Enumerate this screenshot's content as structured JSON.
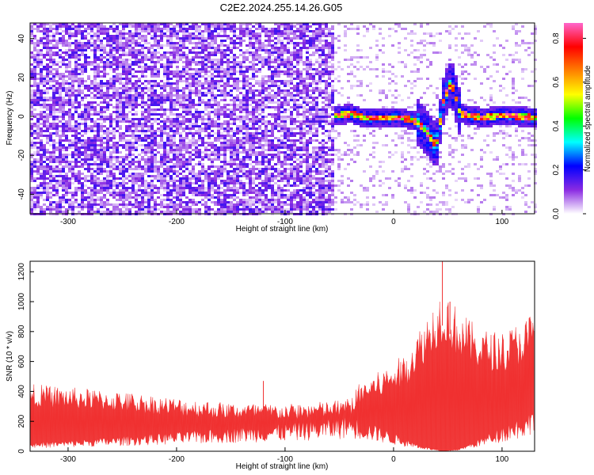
{
  "chart_data": [
    {
      "type": "heatmap",
      "title": "C2E2.2024.255.14.26.G05",
      "xlabel": "Height of straight line (km)",
      "ylabel": "Frequency (Hz)",
      "xlim": [
        -335,
        130
      ],
      "ylim": [
        -50,
        48
      ],
      "xticks": [
        -300,
        -200,
        -100,
        0,
        100
      ],
      "yticks": [
        -40,
        -20,
        0,
        20,
        40
      ],
      "xtick_labels": [
        "-300",
        "-200",
        "-100",
        "0",
        "100"
      ],
      "ytick_labels": [
        "-40",
        "-20",
        "0",
        "20",
        "40"
      ],
      "colorbar": {
        "label": "Normalized spectral amplitude",
        "range": [
          0,
          0.87
        ],
        "ticks": [
          0,
          0.2,
          0.4,
          0.6,
          0.8
        ],
        "tick_labels": [
          "0.0",
          "0.2",
          "0.4",
          "0.6",
          "0.8"
        ],
        "colormap": [
          "#ffffff",
          "#8a2be2",
          "#0000ff",
          "#00ffff",
          "#00ff00",
          "#ffff00",
          "#ff8000",
          "#ff0000",
          "#ff66cc"
        ]
      },
      "noise_region_x": [
        -335,
        -55
      ],
      "signal_ridge": [
        {
          "x": -55,
          "y": 1
        },
        {
          "x": -40,
          "y": 2
        },
        {
          "x": -30,
          "y": 0
        },
        {
          "x": -10,
          "y": 0
        },
        {
          "x": 5,
          "y": 0
        },
        {
          "x": 20,
          "y": -2
        },
        {
          "x": 30,
          "y": -8
        },
        {
          "x": 38,
          "y": -15
        },
        {
          "x": 45,
          "y": 10
        },
        {
          "x": 52,
          "y": 18
        },
        {
          "x": 60,
          "y": 2
        },
        {
          "x": 80,
          "y": 0
        },
        {
          "x": 100,
          "y": 1
        },
        {
          "x": 130,
          "y": 0
        }
      ]
    },
    {
      "type": "line",
      "xlabel": "Height of straight line (km)",
      "ylabel": "SNR (10 * v/v)",
      "xlim": [
        -335,
        130
      ],
      "ylim": [
        0,
        1270
      ],
      "xticks": [
        -300,
        -200,
        -100,
        0,
        100
      ],
      "yticks": [
        0,
        200,
        400,
        600,
        800,
        1000,
        1200
      ],
      "xtick_labels": [
        "-300",
        "-200",
        "-100",
        "0",
        "100"
      ],
      "ytick_labels": [
        "0",
        "200",
        "400",
        "600",
        "800",
        "1000",
        "1200"
      ],
      "series": [
        {
          "name": "SNR",
          "color": "#f03030",
          "envelope_x": [
            -335,
            -300,
            -250,
            -200,
            -150,
            -100,
            -60,
            -40,
            -30,
            -10,
            10,
            30,
            45,
            60,
            80,
            100,
            115,
            130
          ],
          "upper": [
            430,
            410,
            380,
            340,
            310,
            300,
            320,
            340,
            450,
            520,
            620,
            860,
            1050,
            900,
            780,
            760,
            820,
            900
          ],
          "lower": [
            40,
            50,
            70,
            90,
            110,
            130,
            150,
            170,
            150,
            110,
            60,
            20,
            0,
            10,
            60,
            120,
            160,
            200
          ]
        }
      ],
      "notable_spikes": [
        {
          "x": 45,
          "y": 1270
        },
        {
          "x": 52,
          "y": 1000
        },
        {
          "x": -120,
          "y": 470
        }
      ]
    }
  ]
}
